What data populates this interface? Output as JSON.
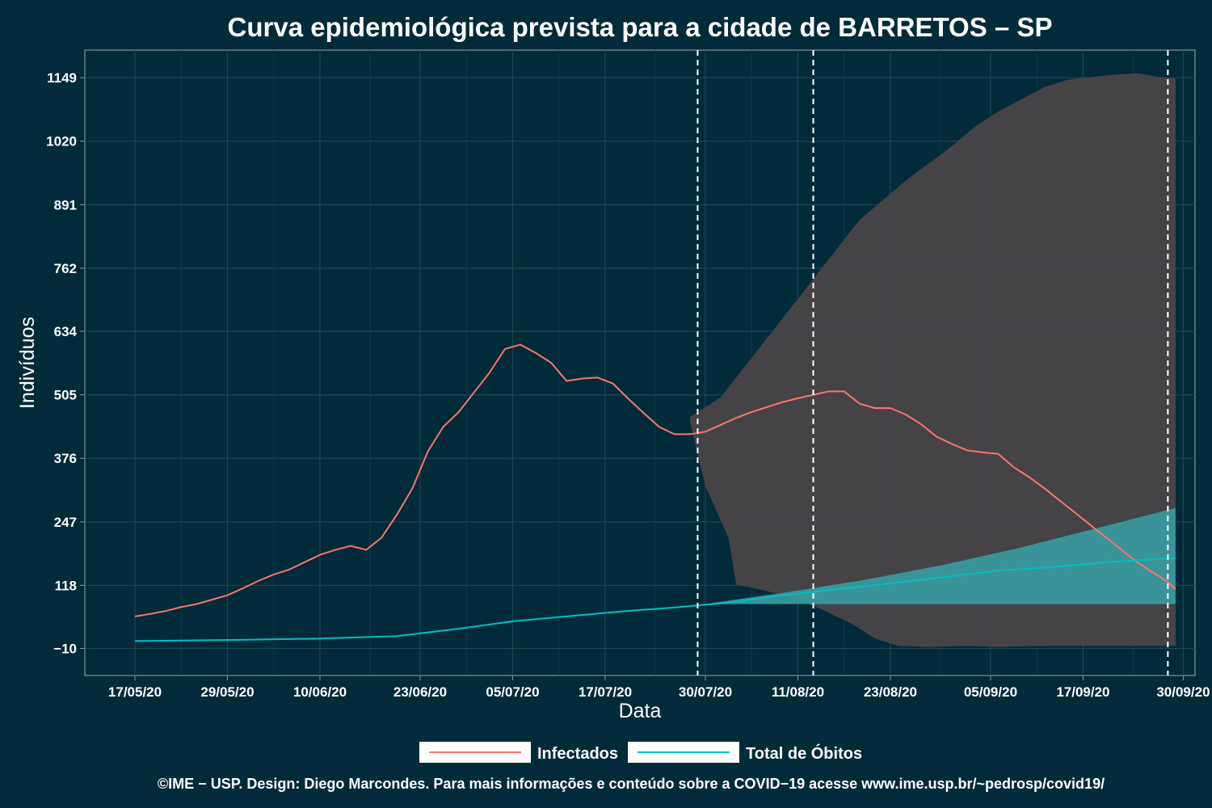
{
  "chart_data": {
    "type": "line",
    "title": "Curva epidemiológica prevista para a cidade de BARRETOS – SP",
    "xlabel": "Data",
    "ylabel": "Indivíduos",
    "x_start": "2020-05-17",
    "x_ticks": [
      "17/05/20",
      "29/05/20",
      "10/06/20",
      "23/06/20",
      "05/07/20",
      "17/07/20",
      "30/07/20",
      "11/08/20",
      "23/08/20",
      "05/09/20",
      "17/09/20",
      "30/09/20"
    ],
    "y_ticks": [
      "−10",
      "118",
      "247",
      "376",
      "505",
      "634",
      "762",
      "891",
      "1020",
      "1149"
    ],
    "ylim": [
      -65,
      1205
    ],
    "grid": true,
    "reference_lines": [
      "2020-07-29",
      "2020-08-13",
      "2020-09-28"
    ],
    "series": [
      {
        "name": "Infectados",
        "color": "#f8766d",
        "points": [
          [
            "2020-05-17",
            55
          ],
          [
            "2020-05-19",
            60
          ],
          [
            "2020-05-21",
            66
          ],
          [
            "2020-05-23",
            74
          ],
          [
            "2020-05-25",
            80
          ],
          [
            "2020-05-27",
            89
          ],
          [
            "2020-05-29",
            98
          ],
          [
            "2020-05-31",
            112
          ],
          [
            "2020-06-02",
            127
          ],
          [
            "2020-06-04",
            140
          ],
          [
            "2020-06-06",
            150
          ],
          [
            "2020-06-08",
            165
          ],
          [
            "2020-06-10",
            180
          ],
          [
            "2020-06-12",
            190
          ],
          [
            "2020-06-14",
            198
          ],
          [
            "2020-06-16",
            190
          ],
          [
            "2020-06-18",
            215
          ],
          [
            "2020-06-20",
            262
          ],
          [
            "2020-06-22",
            315
          ],
          [
            "2020-06-24",
            390
          ],
          [
            "2020-06-26",
            440
          ],
          [
            "2020-06-28",
            470
          ],
          [
            "2020-06-30",
            510
          ],
          [
            "2020-07-02",
            550
          ],
          [
            "2020-07-04",
            598
          ],
          [
            "2020-07-06",
            607
          ],
          [
            "2020-07-08",
            590
          ],
          [
            "2020-07-10",
            570
          ],
          [
            "2020-07-12",
            533
          ],
          [
            "2020-07-14",
            538
          ],
          [
            "2020-07-16",
            540
          ],
          [
            "2020-07-18",
            528
          ],
          [
            "2020-07-20",
            497
          ],
          [
            "2020-07-22",
            468
          ],
          [
            "2020-07-24",
            440
          ],
          [
            "2020-07-26",
            425
          ],
          [
            "2020-07-28",
            425
          ],
          [
            "2020-07-30",
            430
          ],
          [
            "2020-08-01",
            444
          ],
          [
            "2020-08-03",
            458
          ],
          [
            "2020-08-05",
            470
          ],
          [
            "2020-08-07",
            480
          ],
          [
            "2020-08-09",
            490
          ],
          [
            "2020-08-11",
            498
          ],
          [
            "2020-08-13",
            505
          ],
          [
            "2020-08-15",
            512
          ],
          [
            "2020-08-17",
            512
          ],
          [
            "2020-08-19",
            487
          ],
          [
            "2020-08-21",
            478
          ],
          [
            "2020-08-23",
            478
          ],
          [
            "2020-08-25",
            465
          ],
          [
            "2020-08-27",
            445
          ],
          [
            "2020-08-29",
            420
          ],
          [
            "2020-08-31",
            405
          ],
          [
            "2020-09-02",
            392
          ],
          [
            "2020-09-04",
            388
          ],
          [
            "2020-09-06",
            385
          ],
          [
            "2020-09-08",
            358
          ],
          [
            "2020-09-10",
            338
          ],
          [
            "2020-09-12",
            315
          ],
          [
            "2020-09-14",
            290
          ],
          [
            "2020-09-16",
            265
          ],
          [
            "2020-09-18",
            240
          ],
          [
            "2020-09-20",
            215
          ],
          [
            "2020-09-22",
            190
          ],
          [
            "2020-09-24",
            165
          ],
          [
            "2020-09-26",
            145
          ],
          [
            "2020-09-28",
            125
          ],
          [
            "2020-09-29",
            110
          ]
        ]
      },
      {
        "name": "Total de Óbitos",
        "color": "#00bfc4",
        "points": [
          [
            "2020-05-17",
            5
          ],
          [
            "2020-05-29",
            7
          ],
          [
            "2020-06-10",
            10
          ],
          [
            "2020-06-20",
            15
          ],
          [
            "2020-06-28",
            30
          ],
          [
            "2020-07-05",
            45
          ],
          [
            "2020-07-12",
            55
          ],
          [
            "2020-07-19",
            65
          ],
          [
            "2020-07-26",
            73
          ],
          [
            "2020-08-02",
            83
          ],
          [
            "2020-08-09",
            98
          ],
          [
            "2020-08-16",
            110
          ],
          [
            "2020-08-23",
            122
          ],
          [
            "2020-08-30",
            135
          ],
          [
            "2020-09-06",
            148
          ],
          [
            "2020-09-13",
            155
          ],
          [
            "2020-09-20",
            165
          ],
          [
            "2020-09-27",
            172
          ],
          [
            "2020-09-29",
            173
          ]
        ]
      }
    ],
    "bands": [
      {
        "series": "Infectados",
        "color": "#4a4448",
        "upper": [
          [
            "2020-07-28",
            460
          ],
          [
            "2020-08-01",
            500
          ],
          [
            "2020-08-04",
            560
          ],
          [
            "2020-08-07",
            620
          ],
          [
            "2020-08-10",
            680
          ],
          [
            "2020-08-13",
            740
          ],
          [
            "2020-08-16",
            800
          ],
          [
            "2020-08-19",
            860
          ],
          [
            "2020-08-22",
            900
          ],
          [
            "2020-08-25",
            940
          ],
          [
            "2020-08-28",
            975
          ],
          [
            "2020-08-31",
            1010
          ],
          [
            "2020-09-03",
            1050
          ],
          [
            "2020-09-06",
            1080
          ],
          [
            "2020-09-09",
            1105
          ],
          [
            "2020-09-12",
            1130
          ],
          [
            "2020-09-15",
            1145
          ],
          [
            "2020-09-18",
            1150
          ],
          [
            "2020-09-21",
            1155
          ],
          [
            "2020-09-24",
            1158
          ],
          [
            "2020-09-27",
            1150
          ],
          [
            "2020-09-29",
            1148
          ]
        ],
        "lower": [
          [
            "2020-07-28",
            450
          ],
          [
            "2020-07-30",
            320
          ],
          [
            "2020-08-01",
            250
          ],
          [
            "2020-08-02",
            215
          ],
          [
            "2020-08-03",
            120
          ],
          [
            "2020-08-06",
            110
          ],
          [
            "2020-08-10",
            95
          ],
          [
            "2020-08-14",
            70
          ],
          [
            "2020-08-18",
            40
          ],
          [
            "2020-08-21",
            10
          ],
          [
            "2020-08-24",
            -5
          ],
          [
            "2020-08-28",
            -7
          ],
          [
            "2020-09-02",
            -5
          ],
          [
            "2020-09-06",
            -7
          ],
          [
            "2020-09-12",
            -5
          ],
          [
            "2020-09-18",
            -5
          ],
          [
            "2020-09-24",
            -5
          ],
          [
            "2020-09-29",
            -5
          ]
        ]
      },
      {
        "series": "Total de Óbitos",
        "color": "#3a9ca3",
        "upper": [
          [
            "2020-07-30",
            80
          ],
          [
            "2020-08-10",
            105
          ],
          [
            "2020-08-20",
            130
          ],
          [
            "2020-08-30",
            160
          ],
          [
            "2020-09-09",
            195
          ],
          [
            "2020-09-19",
            235
          ],
          [
            "2020-09-29",
            275
          ]
        ],
        "lower": [
          [
            "2020-07-30",
            80
          ],
          [
            "2020-08-05",
            80
          ],
          [
            "2020-09-29",
            80
          ]
        ]
      }
    ],
    "legend": {
      "position": "bottom",
      "entries": [
        "Infectados",
        "Total de Óbitos"
      ]
    },
    "footer": "©IME − USP. Design: Diego Marcondes. Para mais informações e conteúdo sobre a COVID−19 acesse www.ime.usp.br/~pedrosp/covid19/"
  }
}
